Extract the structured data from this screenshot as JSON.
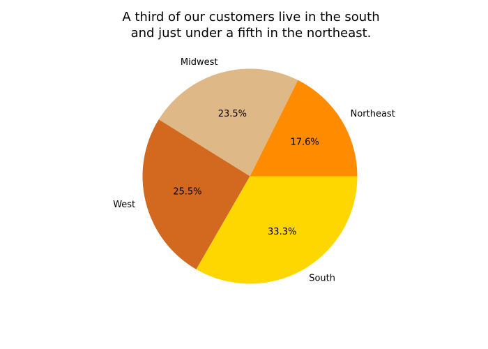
{
  "chart_data": {
    "type": "pie",
    "title_lines": [
      "A third of our customers live in the south",
      "and just under a fifth in the northeast."
    ],
    "categories": [
      "Northeast",
      "Midwest",
      "West",
      "South"
    ],
    "values": [
      17.6,
      23.5,
      25.5,
      33.3
    ],
    "value_labels": [
      "17.6%",
      "23.5%",
      "25.5%",
      "33.3%"
    ],
    "colors": [
      "#ff8c00",
      "#deb887",
      "#d2691e",
      "#ffd700"
    ],
    "start_angle_deg": 0,
    "direction": "counterclockwise",
    "legend": "none"
  }
}
